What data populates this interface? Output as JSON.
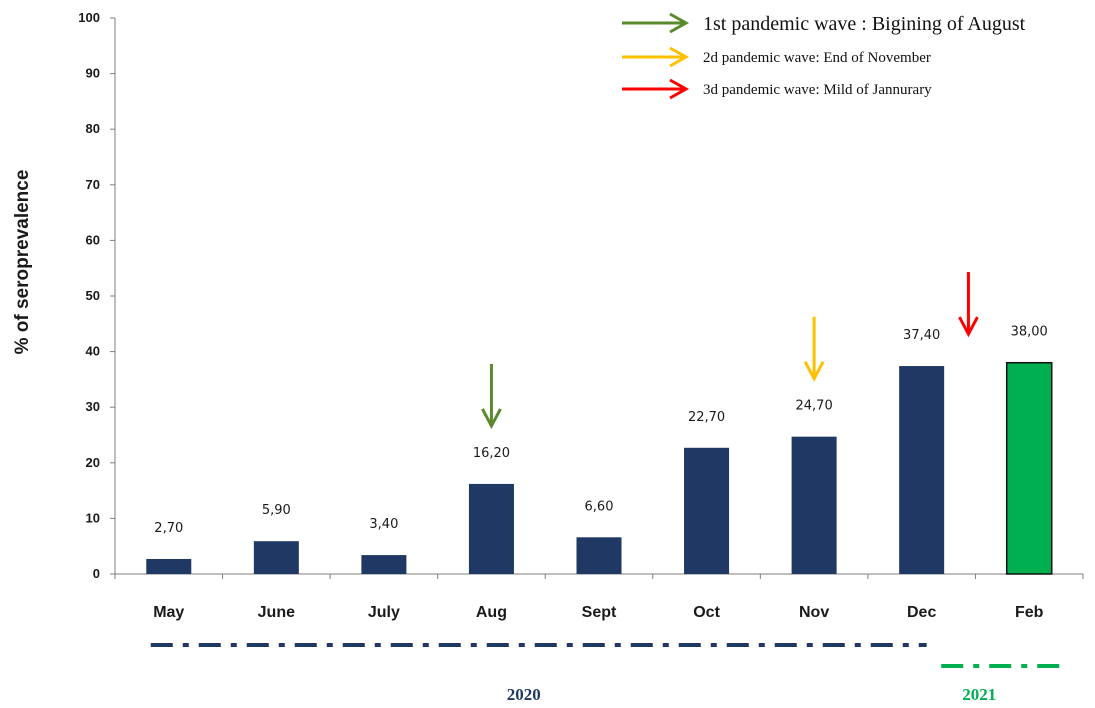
{
  "chart_data": {
    "type": "bar",
    "ylabel": "% of seroprevalence",
    "ylim": [
      0,
      100
    ],
    "yticks": [
      "0",
      "10",
      "20",
      "30",
      "40",
      "50",
      "60",
      "70",
      "80",
      "90",
      "100"
    ],
    "categories": [
      "May",
      "June",
      "July",
      "Aug",
      "Sept",
      "Oct",
      "Nov",
      "Dec",
      "Feb"
    ],
    "values": [
      2.7,
      5.9,
      3.4,
      16.2,
      6.6,
      22.7,
      24.7,
      37.4,
      38.0
    ],
    "value_labels": [
      "2,70",
      "5,90",
      "3,40",
      "16,20",
      "6,60",
      "22,70",
      "24,70",
      "37,40",
      "38,00"
    ],
    "bar_colors": [
      "#1f3864",
      "#1f3864",
      "#1f3864",
      "#1f3864",
      "#1f3864",
      "#1f3864",
      "#1f3864",
      "#1f3864",
      "#00b050"
    ],
    "legend": [
      {
        "label": "1st pandemic wave : Bigining of August",
        "color": "#5b8a2e"
      },
      {
        "label": "2d pandemic wave: End of November",
        "color": "#ffc000"
      },
      {
        "label": "3d pandemic wave: Mild of Jannurary",
        "color": "#ff0000"
      }
    ],
    "wave_markers": [
      {
        "category": "Aug",
        "color": "#5b8a2e",
        "between": false
      },
      {
        "category": "Nov",
        "color": "#ffc000",
        "between": false
      },
      {
        "category": "Dec",
        "color": "#ff0000",
        "between": true
      }
    ],
    "year_groups": [
      {
        "label": "2020",
        "from": "May",
        "to": "Dec",
        "color": "#1f3864"
      },
      {
        "label": "2021",
        "from": "Feb",
        "to": "Feb",
        "color": "#00b050"
      }
    ],
    "legend_position": "top-right",
    "grid": false
  }
}
